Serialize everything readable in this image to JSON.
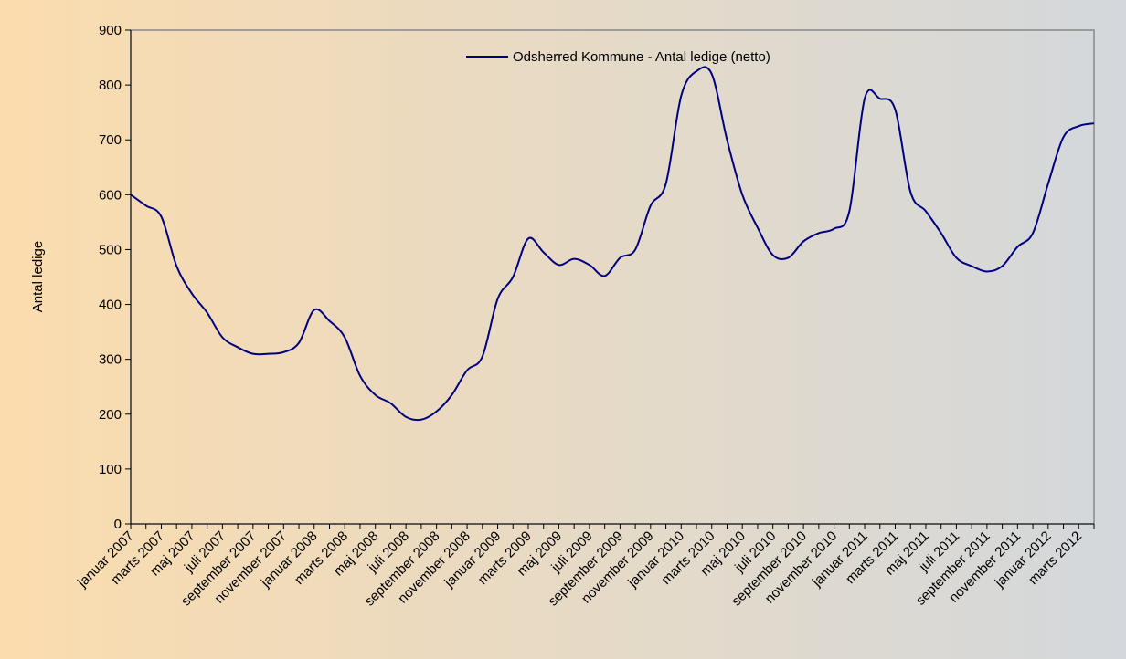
{
  "chart_data": {
    "type": "line",
    "y_label": "Antal ledige",
    "categories": [
      "januar 2007",
      null,
      "marts 2007",
      null,
      "maj 2007",
      null,
      "juli 2007",
      null,
      "september 2007",
      null,
      "november 2007",
      null,
      "januar 2008",
      null,
      "marts 2008",
      null,
      "maj 2008",
      null,
      "juli 2008",
      null,
      "september 2008",
      null,
      "november 2008",
      null,
      "januar 2009",
      null,
      "marts 2009",
      null,
      "maj 2009",
      null,
      "juli 2009",
      null,
      "september 2009",
      null,
      "november 2009",
      null,
      "januar 2010",
      null,
      "marts 2010",
      null,
      "maj 2010",
      null,
      "juli 2010",
      null,
      "september 2010",
      null,
      "november 2010",
      null,
      "januar 2011",
      null,
      "marts 2011",
      null,
      "maj 2011",
      null,
      "juli 2011",
      null,
      "september 2011",
      null,
      "november 2011",
      null,
      "januar 2012",
      null,
      "marts 2012",
      null
    ],
    "series": [
      {
        "name": "Odsherred Kommune - Antal ledige (netto)",
        "color": "#000080",
        "values": [
          600,
          580,
          560,
          470,
          420,
          385,
          340,
          322,
          310,
          310,
          313,
          330,
          390,
          370,
          340,
          270,
          235,
          220,
          195,
          190,
          205,
          235,
          280,
          305,
          410,
          450,
          520,
          495,
          472,
          483,
          472,
          452,
          485,
          500,
          580,
          620,
          780,
          825,
          820,
          700,
          600,
          540,
          490,
          485,
          515,
          530,
          538,
          570,
          775,
          775,
          755,
          605,
          570,
          530,
          485,
          470,
          460,
          470,
          505,
          530,
          620,
          705,
          725,
          730
        ]
      }
    ],
    "ylim": [
      0,
      900
    ],
    "yticks": [
      0,
      100,
      200,
      300,
      400,
      500,
      600,
      700,
      800,
      900
    ],
    "legend": "top",
    "grid": false
  }
}
